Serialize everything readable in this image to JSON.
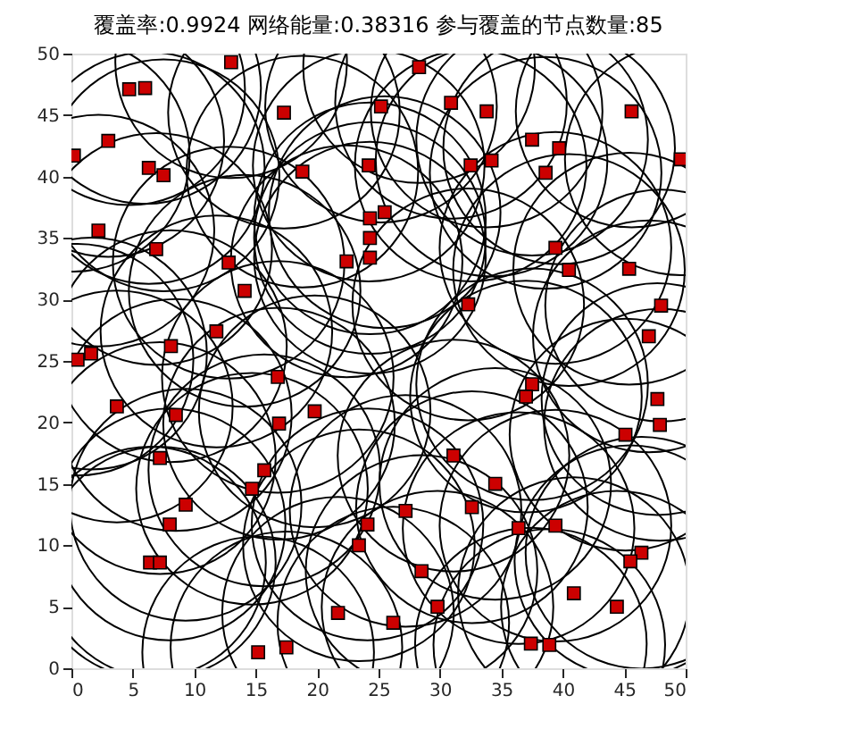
{
  "chart_data": {
    "type": "scatter",
    "title": "覆盖率:0.9924  网络能量:0.38316  参与覆盖的节点数量:85",
    "xlim": [
      0,
      50
    ],
    "ylim": [
      0,
      50
    ],
    "xticks": [
      0,
      5,
      10,
      15,
      20,
      25,
      30,
      35,
      40,
      45,
      50
    ],
    "yticks": [
      0,
      5,
      10,
      15,
      20,
      25,
      30,
      35,
      40,
      45,
      50
    ],
    "grid": false,
    "marker": "square",
    "x": [
      13.0,
      4.7,
      6.0,
      17.3,
      3.0,
      0.2,
      6.3,
      7.5,
      18.8,
      24.2,
      24.3,
      24.3,
      24.3,
      2.2,
      6.9,
      12.8,
      22.4,
      14.1,
      11.8,
      8.1,
      0.5,
      1.6,
      28.3,
      25.2,
      30.9,
      33.8,
      45.6,
      37.5,
      39.7,
      49.6,
      34.2,
      32.5,
      38.6,
      25.5,
      39.4,
      40.5,
      45.4,
      32.3,
      48.0,
      47.0,
      16.8,
      3.7,
      8.5,
      19.8,
      16.9,
      7.2,
      15.7,
      14.7,
      9.3,
      8.0,
      24.1,
      23.4,
      6.4,
      7.2,
      21.7,
      17.5,
      15.2,
      37.5,
      37.0,
      47.7,
      47.9,
      45.1,
      31.1,
      34.5,
      27.2,
      32.6,
      36.4,
      39.4,
      46.4,
      45.5,
      28.5,
      40.9,
      44.4,
      29.8,
      26.2,
      37.4,
      38.9
    ],
    "series": [
      {
        "color": "#cc0000",
        "values": [
          49.3,
          47.1,
          47.2,
          45.2,
          42.9,
          41.7,
          40.7,
          40.1,
          40.4,
          40.9,
          36.6,
          35.0,
          33.4,
          35.6,
          34.1,
          33.0,
          33.1,
          30.7,
          27.4,
          26.2,
          25.1,
          25.6,
          48.9,
          45.7,
          46.0,
          45.3,
          45.3,
          43.0,
          42.3,
          41.4,
          41.3,
          40.9,
          40.3,
          37.1,
          34.2,
          32.4,
          32.5,
          29.6,
          29.5,
          27.0,
          23.7,
          21.3,
          20.6,
          20.9,
          19.9,
          17.1,
          16.1,
          14.6,
          13.3,
          11.7,
          11.7,
          10.0,
          8.6,
          8.6,
          4.5,
          1.7,
          1.3,
          23.1,
          22.1,
          21.9,
          19.8,
          19.0,
          17.3,
          15.0,
          12.8,
          13.1,
          11.4,
          11.6,
          9.4,
          8.7,
          7.9,
          6.1,
          5.0,
          5.0,
          3.7,
          2.0,
          1.9
        ]
      }
    ]
  }
}
